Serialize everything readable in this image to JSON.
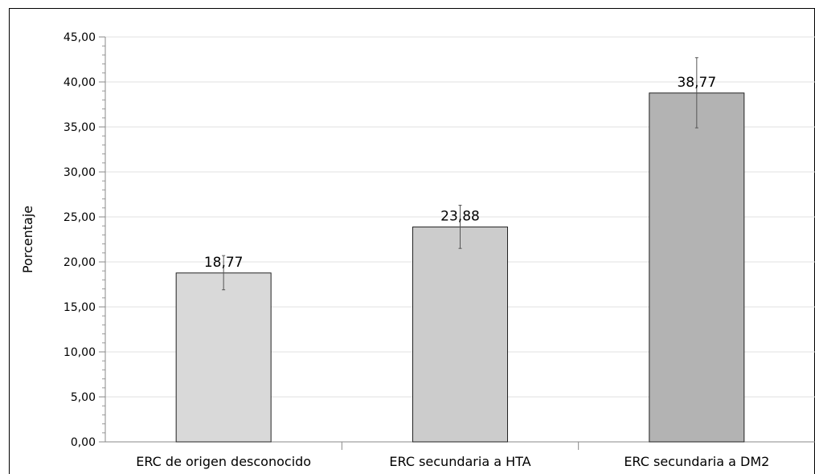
{
  "chart_data": {
    "type": "bar",
    "title": "",
    "xlabel": "",
    "ylabel": "Porcentaje",
    "ylim": [
      0,
      45
    ],
    "y_tick_step": 5,
    "y_tick_labels": [
      "0,00",
      "5,00",
      "10,00",
      "15,00",
      "20,00",
      "25,00",
      "30,00",
      "35,00",
      "40,00",
      "45,00"
    ],
    "categories": [
      "ERC de origen desconocido",
      "ERC secundaria a HTA",
      "ERC secundaria a DM2"
    ],
    "values": [
      18.77,
      23.88,
      38.77
    ],
    "value_labels": [
      "18,77",
      "23,88",
      "38,77"
    ],
    "error_low": [
      16.9,
      21.5,
      34.9
    ],
    "error_high": [
      20.7,
      26.3,
      42.7
    ],
    "bar_colors": [
      "#d9d9d9",
      "#cccccc",
      "#b3b3b3"
    ],
    "grid": true,
    "legend": "none"
  }
}
